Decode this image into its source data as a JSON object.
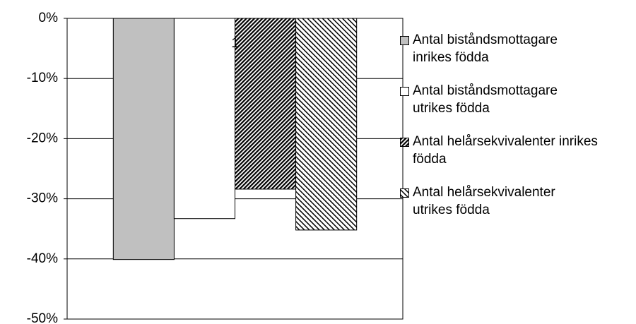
{
  "chart_data": {
    "type": "bar",
    "categories": [
      "1"
    ],
    "series": [
      {
        "name": "Antal biståndsmottagare inrikes födda",
        "color": "#c0c0c0",
        "pattern": "solid",
        "values": [
          -40.1
        ]
      },
      {
        "name": "Antal biståndsmottagare utrikes födda",
        "color": "#ffffff",
        "pattern": "solid",
        "values": [
          -33.3
        ]
      },
      {
        "name": "Antal helårsekvivalenter inrikes födda",
        "color": "#606060",
        "pattern": "dense-hatch",
        "values": [
          -28.4
        ]
      },
      {
        "name": "Antal helårsekvivalenter utrikes födda",
        "color": "#808080",
        "pattern": "light-hatch",
        "values": [
          -35.2
        ]
      }
    ],
    "ylim": [
      -50,
      0
    ],
    "yticks": [
      {
        "value": -50,
        "label": "-50%"
      },
      {
        "value": -40,
        "label": "-40%"
      },
      {
        "value": -30,
        "label": "-30%"
      },
      {
        "value": -20,
        "label": "-20%"
      },
      {
        "value": -10,
        "label": "-10%"
      },
      {
        "value": 0,
        "label": "0%"
      }
    ],
    "grid": true,
    "legend": "right"
  }
}
